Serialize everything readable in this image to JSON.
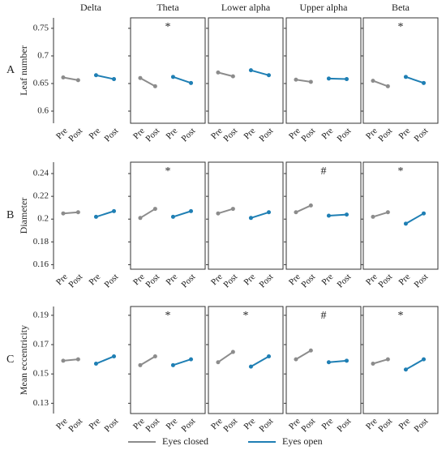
{
  "columns": [
    "Delta",
    "Theta",
    "Lower alpha",
    "Upper alpha",
    "Beta"
  ],
  "rows": [
    {
      "label": "A",
      "ylabel": "Leaf number"
    },
    {
      "label": "B",
      "ylabel": "Diameter"
    },
    {
      "label": "C",
      "ylabel": "Mean eccentricity"
    }
  ],
  "chart_data": [
    {
      "type": "line",
      "categories": [
        "Pre",
        "Post",
        "Pre",
        "Post"
      ],
      "ylim": [
        0.578,
        0.769
      ],
      "yticks": [
        0.6,
        0.65,
        0.7,
        0.75
      ],
      "series": [
        {
          "name": "Eyes closed",
          "color": "#8c8c8c",
          "values": [
            0.661,
            0.656,
            null,
            null
          ]
        },
        {
          "name": "Eyes open",
          "color": "#1f7fb4",
          "values": [
            null,
            null,
            0.665,
            0.658
          ]
        }
      ]
    },
    {
      "type": "line",
      "categories": [
        "Pre",
        "Post",
        "Pre",
        "Post"
      ],
      "ylim": [
        0.578,
        0.769
      ],
      "yticks": [
        0.6,
        0.65,
        0.7,
        0.75
      ],
      "annotation": "*",
      "series": [
        {
          "name": "Eyes closed",
          "color": "#8c8c8c",
          "values": [
            0.66,
            0.645,
            null,
            null
          ]
        },
        {
          "name": "Eyes open",
          "color": "#1f7fb4",
          "values": [
            null,
            null,
            0.662,
            0.651
          ]
        }
      ]
    },
    {
      "type": "line",
      "categories": [
        "Pre",
        "Post",
        "Pre",
        "Post"
      ],
      "ylim": [
        0.578,
        0.769
      ],
      "yticks": [
        0.6,
        0.65,
        0.7,
        0.75
      ],
      "series": [
        {
          "name": "Eyes closed",
          "color": "#8c8c8c",
          "values": [
            0.67,
            0.663,
            null,
            null
          ]
        },
        {
          "name": "Eyes open",
          "color": "#1f7fb4",
          "values": [
            null,
            null,
            0.674,
            0.665
          ]
        }
      ]
    },
    {
      "type": "line",
      "categories": [
        "Pre",
        "Post",
        "Pre",
        "Post"
      ],
      "ylim": [
        0.578,
        0.769
      ],
      "yticks": [
        0.6,
        0.65,
        0.7,
        0.75
      ],
      "series": [
        {
          "name": "Eyes closed",
          "color": "#8c8c8c",
          "values": [
            0.657,
            0.653,
            null,
            null
          ]
        },
        {
          "name": "Eyes open",
          "color": "#1f7fb4",
          "values": [
            null,
            null,
            0.659,
            0.658
          ]
        }
      ]
    },
    {
      "type": "line",
      "categories": [
        "Pre",
        "Post",
        "Pre",
        "Post"
      ],
      "ylim": [
        0.578,
        0.769
      ],
      "yticks": [
        0.6,
        0.65,
        0.7,
        0.75
      ],
      "annotation": "*",
      "series": [
        {
          "name": "Eyes closed",
          "color": "#8c8c8c",
          "values": [
            0.655,
            0.645,
            null,
            null
          ]
        },
        {
          "name": "Eyes open",
          "color": "#1f7fb4",
          "values": [
            null,
            null,
            0.662,
            0.651
          ]
        }
      ]
    },
    {
      "type": "line",
      "categories": [
        "Pre",
        "Post",
        "Pre",
        "Post"
      ],
      "ylim": [
        0.156,
        0.25
      ],
      "yticks": [
        0.16,
        0.18,
        0.2,
        0.22,
        0.24
      ],
      "series": [
        {
          "name": "Eyes closed",
          "color": "#8c8c8c",
          "values": [
            0.205,
            0.206,
            null,
            null
          ]
        },
        {
          "name": "Eyes open",
          "color": "#1f7fb4",
          "values": [
            null,
            null,
            0.202,
            0.207
          ]
        }
      ]
    },
    {
      "type": "line",
      "categories": [
        "Pre",
        "Post",
        "Pre",
        "Post"
      ],
      "ylim": [
        0.156,
        0.25
      ],
      "yticks": [
        0.16,
        0.18,
        0.2,
        0.22,
        0.24
      ],
      "annotation": "*",
      "series": [
        {
          "name": "Eyes closed",
          "color": "#8c8c8c",
          "values": [
            0.201,
            0.209,
            null,
            null
          ]
        },
        {
          "name": "Eyes open",
          "color": "#1f7fb4",
          "values": [
            null,
            null,
            0.202,
            0.207
          ]
        }
      ]
    },
    {
      "type": "line",
      "categories": [
        "Pre",
        "Post",
        "Pre",
        "Post"
      ],
      "ylim": [
        0.156,
        0.25
      ],
      "yticks": [
        0.16,
        0.18,
        0.2,
        0.22,
        0.24
      ],
      "series": [
        {
          "name": "Eyes closed",
          "color": "#8c8c8c",
          "values": [
            0.205,
            0.209,
            null,
            null
          ]
        },
        {
          "name": "Eyes open",
          "color": "#1f7fb4",
          "values": [
            null,
            null,
            0.201,
            0.206
          ]
        }
      ]
    },
    {
      "type": "line",
      "categories": [
        "Pre",
        "Post",
        "Pre",
        "Post"
      ],
      "ylim": [
        0.156,
        0.25
      ],
      "yticks": [
        0.16,
        0.18,
        0.2,
        0.22,
        0.24
      ],
      "annotation": "#",
      "series": [
        {
          "name": "Eyes closed",
          "color": "#8c8c8c",
          "values": [
            0.206,
            0.212,
            null,
            null
          ]
        },
        {
          "name": "Eyes open",
          "color": "#1f7fb4",
          "values": [
            null,
            null,
            0.203,
            0.204
          ]
        }
      ]
    },
    {
      "type": "line",
      "categories": [
        "Pre",
        "Post",
        "Pre",
        "Post"
      ],
      "ylim": [
        0.156,
        0.25
      ],
      "yticks": [
        0.16,
        0.18,
        0.2,
        0.22,
        0.24
      ],
      "annotation": "*",
      "series": [
        {
          "name": "Eyes closed",
          "color": "#8c8c8c",
          "values": [
            0.202,
            0.206,
            null,
            null
          ]
        },
        {
          "name": "Eyes open",
          "color": "#1f7fb4",
          "values": [
            null,
            null,
            0.196,
            0.205
          ]
        }
      ]
    },
    {
      "type": "line",
      "categories": [
        "Pre",
        "Post",
        "Pre",
        "Post"
      ],
      "ylim": [
        0.123,
        0.196
      ],
      "yticks": [
        0.13,
        0.15,
        0.17,
        0.19
      ],
      "series": [
        {
          "name": "Eyes closed",
          "color": "#8c8c8c",
          "values": [
            0.159,
            0.16,
            null,
            null
          ]
        },
        {
          "name": "Eyes open",
          "color": "#1f7fb4",
          "values": [
            null,
            null,
            0.157,
            0.162
          ]
        }
      ]
    },
    {
      "type": "line",
      "categories": [
        "Pre",
        "Post",
        "Pre",
        "Post"
      ],
      "ylim": [
        0.123,
        0.196
      ],
      "yticks": [
        0.13,
        0.15,
        0.17,
        0.19
      ],
      "annotation": "*",
      "series": [
        {
          "name": "Eyes closed",
          "color": "#8c8c8c",
          "values": [
            0.156,
            0.162,
            null,
            null
          ]
        },
        {
          "name": "Eyes open",
          "color": "#1f7fb4",
          "values": [
            null,
            null,
            0.156,
            0.16
          ]
        }
      ]
    },
    {
      "type": "line",
      "categories": [
        "Pre",
        "Post",
        "Pre",
        "Post"
      ],
      "ylim": [
        0.123,
        0.196
      ],
      "yticks": [
        0.13,
        0.15,
        0.17,
        0.19
      ],
      "annotation": "*",
      "series": [
        {
          "name": "Eyes closed",
          "color": "#8c8c8c",
          "values": [
            0.158,
            0.165,
            null,
            null
          ]
        },
        {
          "name": "Eyes open",
          "color": "#1f7fb4",
          "values": [
            null,
            null,
            0.155,
            0.162
          ]
        }
      ]
    },
    {
      "type": "line",
      "categories": [
        "Pre",
        "Post",
        "Pre",
        "Post"
      ],
      "ylim": [
        0.123,
        0.196
      ],
      "yticks": [
        0.13,
        0.15,
        0.17,
        0.19
      ],
      "annotation": "#",
      "series": [
        {
          "name": "Eyes closed",
          "color": "#8c8c8c",
          "values": [
            0.16,
            0.166,
            null,
            null
          ]
        },
        {
          "name": "Eyes open",
          "color": "#1f7fb4",
          "values": [
            null,
            null,
            0.158,
            0.159
          ]
        }
      ]
    },
    {
      "type": "line",
      "categories": [
        "Pre",
        "Post",
        "Pre",
        "Post"
      ],
      "ylim": [
        0.123,
        0.196
      ],
      "yticks": [
        0.13,
        0.15,
        0.17,
        0.19
      ],
      "annotation": "*",
      "series": [
        {
          "name": "Eyes closed",
          "color": "#8c8c8c",
          "values": [
            0.157,
            0.16,
            null,
            null
          ]
        },
        {
          "name": "Eyes open",
          "color": "#1f7fb4",
          "values": [
            null,
            null,
            0.153,
            0.16
          ]
        }
      ]
    }
  ]
}
